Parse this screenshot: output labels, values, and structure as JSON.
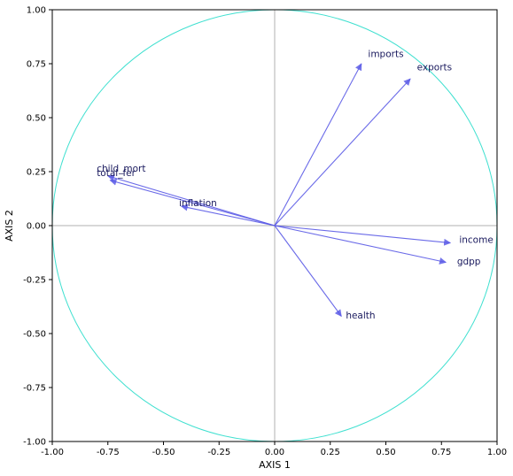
{
  "chart_data": {
    "type": "scatter",
    "subtype": "pca-correlation-circle",
    "title": "",
    "xlabel": "AXIS 1",
    "ylabel": "AXIS 2",
    "xlim": [
      -1.0,
      1.0
    ],
    "ylim": [
      -1.0,
      1.0
    ],
    "xticks": [
      "-1.00",
      "-0.75",
      "-0.50",
      "-0.25",
      "0.00",
      "0.25",
      "0.50",
      "0.75",
      "1.00"
    ],
    "yticks": [
      "1.00",
      "0.75",
      "0.50",
      "0.25",
      "0.00",
      "-0.25",
      "-0.50",
      "-0.75",
      "-1.00"
    ],
    "grid": false,
    "circle_color": "#40e0d0",
    "arrow_color": "#5a5ae6",
    "zero_line_color": "#b0b0b0",
    "vectors": [
      {
        "name": "imports",
        "x": 0.39,
        "y": 0.75,
        "label_x": 0.42,
        "label_y": 0.78
      },
      {
        "name": "exports",
        "x": 0.61,
        "y": 0.68,
        "label_x": 0.64,
        "label_y": 0.72
      },
      {
        "name": "child_mort",
        "x": -0.75,
        "y": 0.23,
        "label_x": -0.8,
        "label_y": 0.25
      },
      {
        "name": "total_fer",
        "x": -0.74,
        "y": 0.21,
        "label_x": -0.8,
        "label_y": 0.23
      },
      {
        "name": "inflation",
        "x": -0.42,
        "y": 0.09,
        "label_x": -0.43,
        "label_y": 0.09
      },
      {
        "name": "income",
        "x": 0.79,
        "y": -0.08,
        "label_x": 0.83,
        "label_y": -0.08
      },
      {
        "name": "gdpp",
        "x": 0.77,
        "y": -0.17,
        "label_x": 0.82,
        "label_y": -0.18
      },
      {
        "name": "health",
        "x": 0.3,
        "y": -0.42,
        "label_x": 0.32,
        "label_y": -0.43
      }
    ]
  }
}
